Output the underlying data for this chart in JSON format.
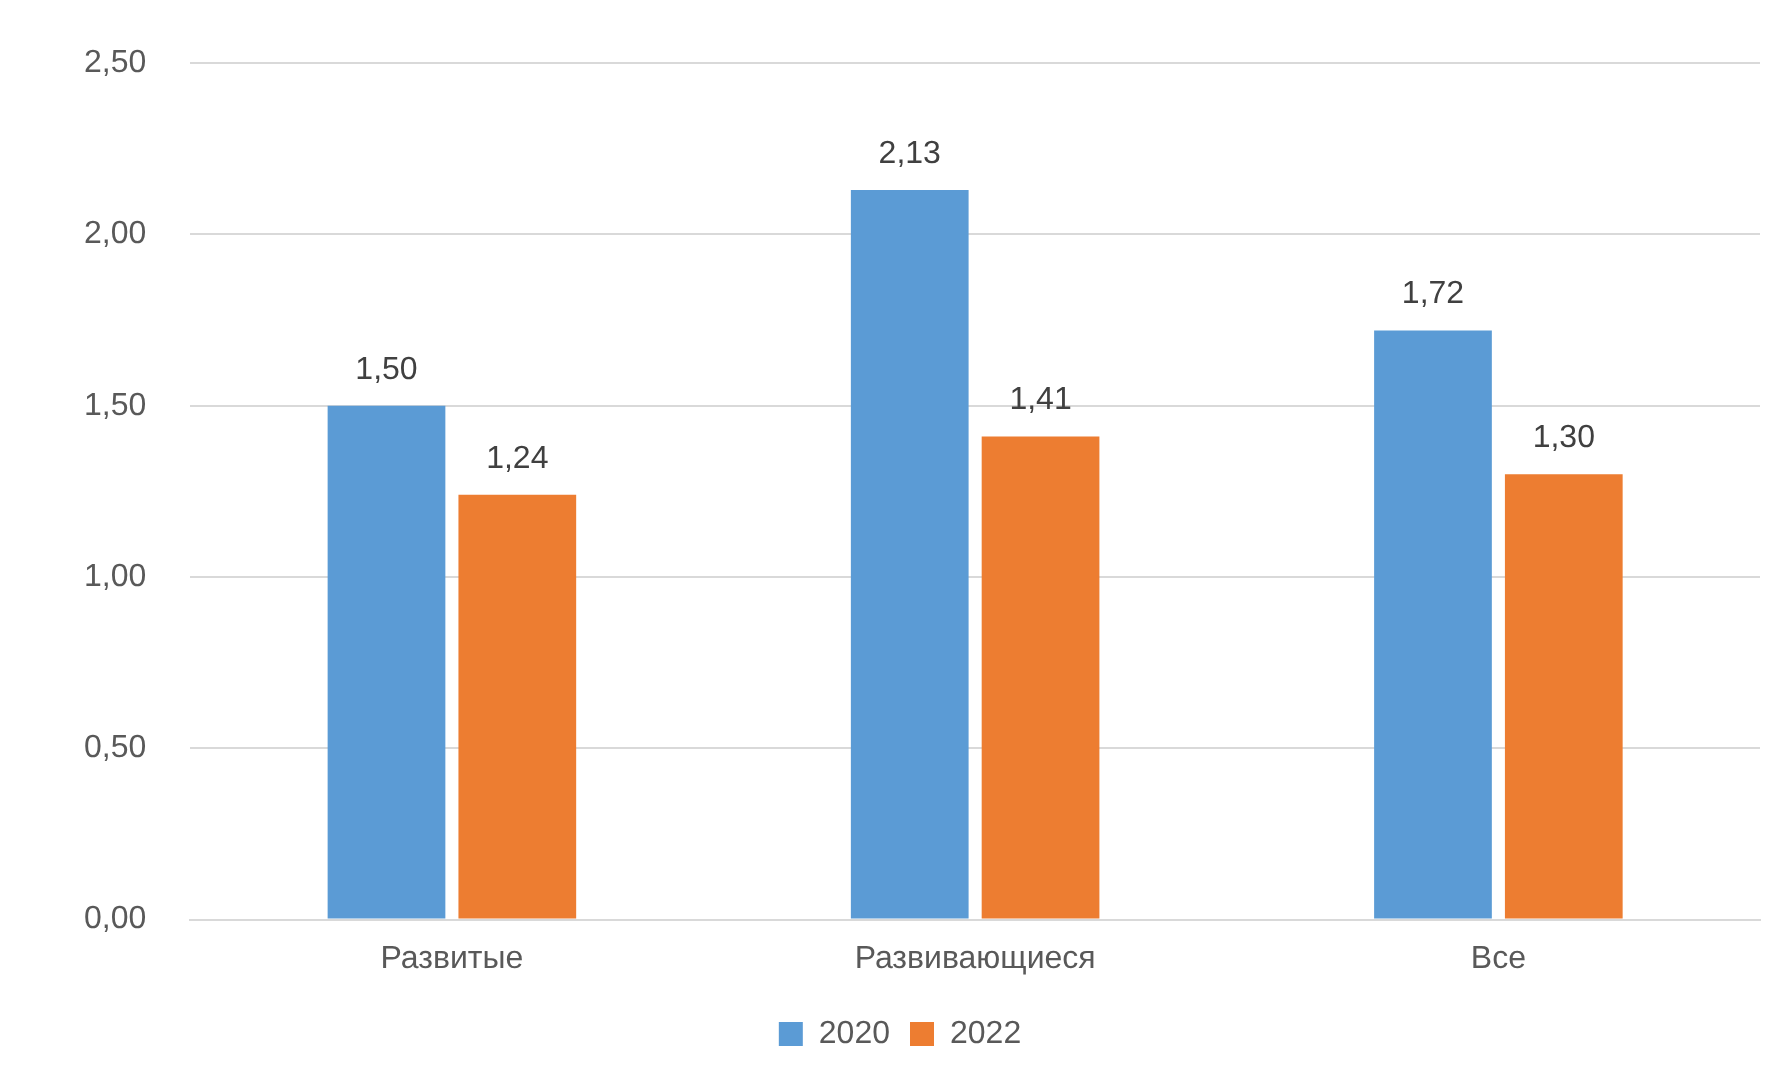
{
  "chart_data": {
    "type": "bar",
    "categories": [
      "Развитые",
      "Развивающиеся",
      "Все"
    ],
    "series": [
      {
        "name": "2020",
        "color": "#5b9bd5",
        "values": [
          1.5,
          2.13,
          1.72
        ],
        "value_labels": [
          "1,50",
          "2,13",
          "1,72"
        ]
      },
      {
        "name": "2022",
        "color": "#ed7d31",
        "values": [
          1.24,
          1.41,
          1.3
        ],
        "value_labels": [
          "1,24",
          "1,41",
          "1,30"
        ]
      }
    ],
    "ylim": [
      0,
      2.5
    ],
    "yticks": [
      {
        "value": 0,
        "label": "0,00"
      },
      {
        "value": 0.5,
        "label": "0,50"
      },
      {
        "value": 1,
        "label": "1,00"
      },
      {
        "value": 1.5,
        "label": "1,50"
      },
      {
        "value": 2,
        "label": "2,00"
      },
      {
        "value": 2.5,
        "label": "2,50"
      }
    ],
    "grid": "y",
    "legend": "bottom"
  }
}
